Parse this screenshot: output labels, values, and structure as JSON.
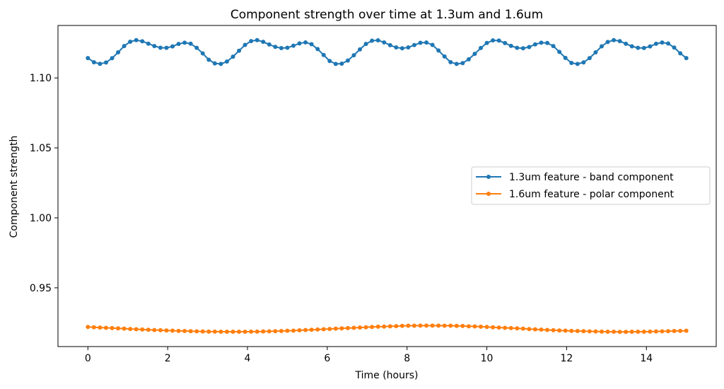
{
  "chart_data": {
    "type": "line",
    "title": "Component strength over time at 1.3um and 1.6um",
    "xlabel": "Time (hours)",
    "ylabel": "Component strength",
    "xlim": [
      -0.75,
      15.75
    ],
    "ylim": [
      0.908,
      1.1375
    ],
    "xticks": [
      0,
      2,
      4,
      6,
      8,
      10,
      12,
      14
    ],
    "yticks": [
      0.95,
      1.0,
      1.05,
      1.1
    ],
    "ytick_labels": [
      "0.95",
      "1.00",
      "1.05",
      "1.10"
    ],
    "grid": false,
    "legend_position": "center-right",
    "x": [
      0.0,
      0.1515,
      0.303,
      0.4545,
      0.6061,
      0.7576,
      0.9091,
      1.0606,
      1.2121,
      1.3636,
      1.5152,
      1.6667,
      1.8182,
      1.9697,
      2.1212,
      2.2727,
      2.4242,
      2.5758,
      2.7273,
      2.8788,
      3.0303,
      3.1818,
      3.3333,
      3.4848,
      3.6364,
      3.7879,
      3.9394,
      4.0909,
      4.2424,
      4.3939,
      4.5455,
      4.697,
      4.8485,
      5.0,
      5.1515,
      5.303,
      5.4545,
      5.6061,
      5.7576,
      5.9091,
      6.0606,
      6.2121,
      6.3636,
      6.5152,
      6.6667,
      6.8182,
      6.9697,
      7.1212,
      7.2727,
      7.4242,
      7.5758,
      7.7273,
      7.8788,
      8.0303,
      8.1818,
      8.3333,
      8.4848,
      8.6364,
      8.7879,
      8.9394,
      9.0909,
      9.2424,
      9.3939,
      9.5455,
      9.697,
      9.8485,
      10.0,
      10.1515,
      10.303,
      10.4545,
      10.6061,
      10.7576,
      10.9091,
      11.0606,
      11.2121,
      11.3636,
      11.5152,
      11.6667,
      11.8182,
      11.9697,
      12.1212,
      12.2727,
      12.4242,
      12.5758,
      12.7273,
      12.8788,
      13.0303,
      13.1818,
      13.3333,
      13.4848,
      13.6364,
      13.7879,
      13.9394,
      14.0909,
      14.2424,
      14.3939,
      14.5455,
      14.697,
      14.8485,
      15.0
    ],
    "series": [
      {
        "name": "1.3um feature - band component",
        "color": "#1f77b4",
        "values": [
          1.1142,
          1.1112,
          1.1101,
          1.111,
          1.1141,
          1.1183,
          1.1228,
          1.1259,
          1.127,
          1.1262,
          1.1245,
          1.1228,
          1.1216,
          1.1215,
          1.1225,
          1.1243,
          1.1252,
          1.1245,
          1.1215,
          1.1175,
          1.113,
          1.1104,
          1.11,
          1.1117,
          1.1152,
          1.1194,
          1.1236,
          1.1263,
          1.127,
          1.1258,
          1.1239,
          1.1222,
          1.1213,
          1.1216,
          1.123,
          1.1247,
          1.1254,
          1.1241,
          1.1206,
          1.1164,
          1.1121,
          1.11,
          1.1102,
          1.1124,
          1.1162,
          1.1204,
          1.1243,
          1.1266,
          1.1269,
          1.1254,
          1.1234,
          1.1218,
          1.1212,
          1.1218,
          1.1235,
          1.1251,
          1.1253,
          1.1236,
          1.1196,
          1.1153,
          1.1113,
          1.11,
          1.1106,
          1.1133,
          1.1172,
          1.1214,
          1.125,
          1.1268,
          1.1267,
          1.1249,
          1.1229,
          1.1215,
          1.1212,
          1.1221,
          1.124,
          1.1252,
          1.125,
          1.1228,
          1.1186,
          1.1143,
          1.1107,
          1.11,
          1.1111,
          1.1142,
          1.1183,
          1.1226,
          1.1257,
          1.127,
          1.1263,
          1.1244,
          1.1226,
          1.1215,
          1.1214,
          1.1225,
          1.1244,
          1.1253,
          1.1246,
          1.1217,
          1.1176,
          1.1142
        ]
      },
      {
        "name": "1.6um feature - polar component",
        "color": "#ff7f0e",
        "values": [
          0.922,
          0.9218,
          0.9216,
          0.9214,
          0.9212,
          0.921,
          0.9208,
          0.9206,
          0.9204,
          0.9202,
          0.92,
          0.9198,
          0.9197,
          0.9195,
          0.9194,
          0.9192,
          0.9191,
          0.919,
          0.9189,
          0.9188,
          0.9187,
          0.9187,
          0.9186,
          0.9186,
          0.9186,
          0.9186,
          0.9186,
          0.9187,
          0.9187,
          0.9188,
          0.9189,
          0.919,
          0.9191,
          0.9193,
          0.9194,
          0.9196,
          0.9198,
          0.92,
          0.9202,
          0.9204,
          0.9206,
          0.9208,
          0.921,
          0.9212,
          0.9214,
          0.9216,
          0.9218,
          0.922,
          0.9222,
          0.9223,
          0.9225,
          0.9226,
          0.9228,
          0.9229,
          0.9229,
          0.923,
          0.923,
          0.923,
          0.923,
          0.9229,
          0.9229,
          0.9228,
          0.9227,
          0.9225,
          0.9224,
          0.9222,
          0.922,
          0.9218,
          0.9216,
          0.9214,
          0.9212,
          0.921,
          0.9208,
          0.9205,
          0.9203,
          0.9201,
          0.9199,
          0.9197,
          0.9195,
          0.9194,
          0.9192,
          0.9191,
          0.919,
          0.9189,
          0.9188,
          0.9187,
          0.9186,
          0.9186,
          0.9185,
          0.9185,
          0.9186,
          0.9186,
          0.9186,
          0.9187,
          0.9188,
          0.9189,
          0.919,
          0.9191,
          0.9192,
          0.9193
        ]
      }
    ]
  }
}
